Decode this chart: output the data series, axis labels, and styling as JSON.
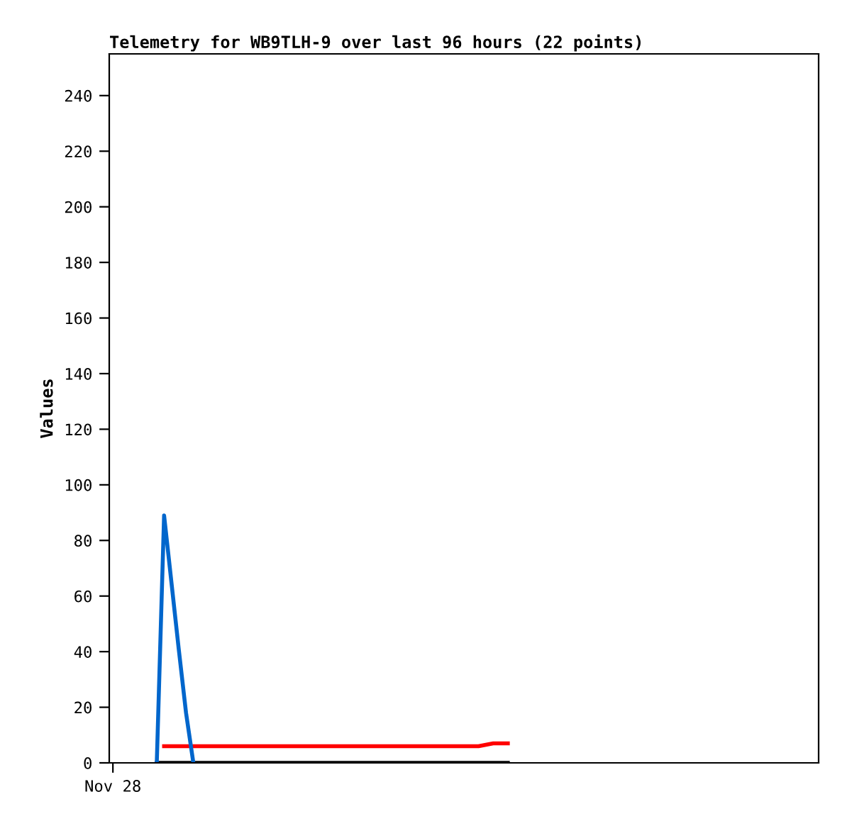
{
  "chart_data": {
    "type": "line",
    "title": "Telemetry for WB9TLH-9 over last 96 hours (22 points)",
    "ylabel": "Values",
    "categories": [
      "Nov 28",
      null,
      null,
      null,
      null,
      null,
      null,
      null,
      null,
      null,
      null,
      null,
      null,
      null,
      null,
      null,
      null,
      null,
      null,
      null,
      null,
      null,
      null,
      null,
      null,
      null,
      null,
      null,
      null,
      null,
      null,
      null,
      null,
      null,
      null,
      null,
      null,
      null,
      null,
      null,
      null,
      null,
      null,
      null,
      null,
      null,
      null,
      null,
      null,
      null,
      null,
      null,
      null,
      null,
      null,
      null,
      null,
      null,
      null,
      null,
      null,
      null,
      null,
      null,
      null,
      null,
      null,
      null,
      null,
      null,
      null,
      null,
      null,
      null,
      null,
      null,
      null,
      null,
      null,
      null,
      null,
      null,
      null,
      null,
      null,
      null,
      null,
      null,
      null,
      null,
      null,
      null,
      null,
      null,
      null,
      null,
      null
    ],
    "ylim": [
      0,
      255
    ],
    "yticks": [
      0,
      20,
      40,
      60,
      80,
      100,
      120,
      140,
      160,
      180,
      200,
      220,
      240
    ],
    "grid": false,
    "legend": false,
    "marker": "none",
    "line_style": "solid",
    "series": [
      {
        "color": "#000000",
        "values": [
          null,
          null,
          null,
          null,
          null,
          null,
          0,
          0,
          0,
          0,
          0,
          0,
          0,
          0,
          0,
          0,
          0,
          0,
          0,
          0,
          0,
          0,
          0,
          0,
          0,
          0,
          0,
          0,
          0,
          0,
          0,
          0,
          0,
          0,
          0,
          0,
          0,
          0,
          0,
          0,
          0,
          0,
          0,
          0,
          0,
          0,
          0,
          0,
          0,
          0,
          0,
          0,
          0,
          0,
          0,
          null,
          null,
          null,
          null,
          null,
          null,
          null,
          null,
          null,
          null,
          null,
          null,
          null,
          null,
          null,
          null,
          null,
          null,
          null,
          null,
          null,
          null,
          null,
          null,
          null,
          null,
          null,
          null,
          null,
          null,
          null,
          null,
          null,
          null,
          null,
          null,
          null,
          null,
          null,
          null,
          null,
          null
        ]
      },
      {
        "color": "#ff0000",
        "values": [
          null,
          null,
          null,
          null,
          null,
          null,
          null,
          6,
          6,
          6,
          6,
          6,
          6,
          6,
          6,
          6,
          6,
          6,
          6,
          6,
          6,
          6,
          6,
          6,
          6,
          6,
          6,
          6,
          6,
          6,
          6,
          6,
          6,
          6,
          6,
          6,
          6,
          6,
          6,
          6,
          6,
          6,
          6,
          6,
          6,
          6,
          6,
          6,
          6,
          6,
          6,
          6.5,
          7,
          7,
          7,
          null,
          null,
          null,
          null,
          null,
          null,
          null,
          null,
          null,
          null,
          null,
          null,
          null,
          null,
          null,
          null,
          null,
          null,
          null,
          null,
          null,
          null,
          null,
          null,
          null,
          null,
          null,
          null,
          null,
          null,
          null,
          null,
          null,
          null,
          null,
          null,
          null,
          null,
          null,
          null,
          null,
          null
        ]
      },
      {
        "color": "#0066cc",
        "values": [
          null,
          null,
          null,
          null,
          null,
          null,
          0,
          89,
          65,
          41,
          18,
          0,
          null,
          null,
          null,
          null,
          null,
          null,
          null,
          null,
          null,
          null,
          null,
          null,
          null,
          null,
          null,
          null,
          null,
          null,
          null,
          null,
          null,
          null,
          null,
          null,
          null,
          null,
          null,
          null,
          null,
          null,
          null,
          null,
          null,
          null,
          null,
          null,
          null,
          null,
          null,
          null,
          null,
          null,
          null,
          null,
          null,
          null,
          null,
          null,
          null,
          null,
          null,
          null,
          null,
          null,
          null,
          null,
          null,
          null,
          null,
          null,
          null,
          null,
          null,
          null,
          null,
          null,
          null,
          null,
          null,
          null,
          null,
          null,
          null,
          null,
          null,
          null,
          null,
          null,
          null,
          null,
          null,
          null,
          null,
          null,
          null
        ]
      }
    ]
  }
}
